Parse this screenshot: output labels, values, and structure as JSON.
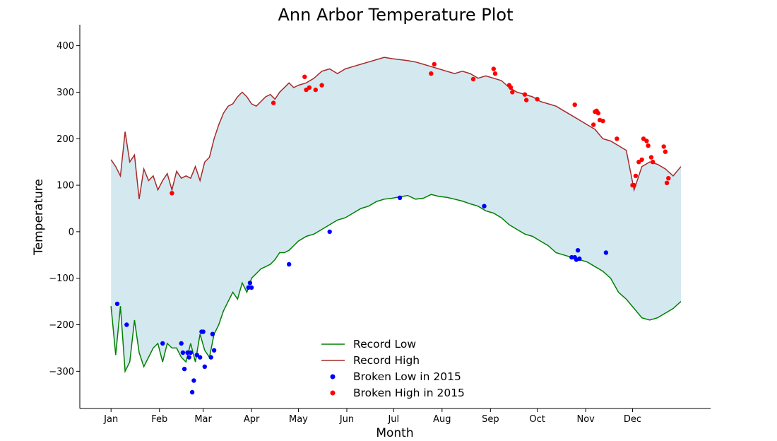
{
  "chart_data": {
    "type": "line",
    "title": "Ann Arbor Temperature Plot",
    "xlabel": "Month",
    "ylabel": "Temperature",
    "xlim": [
      -20,
      384
    ],
    "ylim": [
      -380,
      445
    ],
    "x_ticks": [
      {
        "day": 0,
        "label": "Jan"
      },
      {
        "day": 31,
        "label": "Feb"
      },
      {
        "day": 59,
        "label": "Mar"
      },
      {
        "day": 90,
        "label": "Apr"
      },
      {
        "day": 120,
        "label": "May"
      },
      {
        "day": 151,
        "label": "Jun"
      },
      {
        "day": 181,
        "label": "Jul"
      },
      {
        "day": 212,
        "label": "Aug"
      },
      {
        "day": 243,
        "label": "Sep"
      },
      {
        "day": 273,
        "label": "Oct"
      },
      {
        "day": 304,
        "label": "Nov"
      },
      {
        "day": 334,
        "label": "Dec"
      }
    ],
    "y_ticks": [
      -300,
      -200,
      -100,
      0,
      100,
      200,
      300,
      400
    ],
    "y_tick_labels": [
      "−300",
      "−200",
      "−100",
      "0",
      "100",
      "200",
      "300",
      "400"
    ],
    "grid": false,
    "legend_position": "bottom-center",
    "fill_between": {
      "color": "#d4e8f0"
    },
    "series": [
      {
        "name": "Record Low",
        "kind": "line",
        "color": "#008000",
        "x": [
          0,
          3,
          6,
          9,
          12,
          15,
          18,
          21,
          24,
          27,
          30,
          33,
          36,
          39,
          42,
          45,
          48,
          51,
          54,
          57,
          60,
          63,
          66,
          69,
          72,
          75,
          78,
          81,
          84,
          87,
          90,
          93,
          96,
          99,
          102,
          105,
          108,
          111,
          114,
          117,
          120,
          125,
          130,
          135,
          140,
          145,
          150,
          155,
          160,
          165,
          170,
          175,
          180,
          185,
          190,
          195,
          200,
          205,
          210,
          215,
          220,
          225,
          230,
          235,
          240,
          245,
          250,
          255,
          260,
          265,
          270,
          275,
          280,
          285,
          290,
          295,
          300,
          305,
          310,
          315,
          320,
          325,
          330,
          335,
          340,
          345,
          350,
          355,
          360,
          365
        ],
        "y": [
          -160,
          -265,
          -160,
          -300,
          -280,
          -190,
          -260,
          -290,
          -270,
          -250,
          -240,
          -280,
          -240,
          -250,
          -250,
          -270,
          -280,
          -240,
          -280,
          -220,
          -255,
          -270,
          -220,
          -200,
          -170,
          -150,
          -130,
          -145,
          -110,
          -130,
          -100,
          -90,
          -80,
          -75,
          -70,
          -60,
          -45,
          -45,
          -40,
          -30,
          -20,
          -10,
          -5,
          5,
          15,
          25,
          30,
          40,
          50,
          55,
          65,
          70,
          72,
          75,
          78,
          70,
          72,
          80,
          76,
          74,
          70,
          66,
          60,
          55,
          45,
          40,
          30,
          15,
          5,
          -5,
          -10,
          -20,
          -30,
          -45,
          -50,
          -55,
          -60,
          -65,
          -75,
          -85,
          -100,
          -130,
          -145,
          -165,
          -185,
          -190,
          -185,
          -175,
          -165,
          -150
        ]
      },
      {
        "name": "Record High",
        "kind": "line",
        "color": "#a52a2a",
        "x": [
          0,
          3,
          6,
          9,
          12,
          15,
          18,
          21,
          24,
          27,
          30,
          33,
          36,
          39,
          42,
          45,
          48,
          51,
          54,
          57,
          60,
          63,
          66,
          69,
          72,
          75,
          78,
          81,
          84,
          87,
          90,
          93,
          96,
          99,
          102,
          105,
          108,
          111,
          114,
          117,
          120,
          125,
          130,
          135,
          140,
          145,
          150,
          155,
          160,
          165,
          170,
          175,
          180,
          185,
          190,
          195,
          200,
          205,
          210,
          215,
          220,
          225,
          230,
          235,
          240,
          245,
          250,
          255,
          260,
          265,
          270,
          275,
          280,
          285,
          290,
          295,
          300,
          305,
          310,
          315,
          320,
          325,
          330,
          335,
          340,
          345,
          350,
          355,
          360,
          365
        ],
        "y": [
          155,
          140,
          120,
          215,
          150,
          165,
          70,
          135,
          110,
          120,
          90,
          110,
          125,
          90,
          130,
          115,
          120,
          115,
          140,
          110,
          150,
          160,
          200,
          230,
          255,
          270,
          275,
          290,
          300,
          290,
          275,
          270,
          280,
          290,
          295,
          285,
          300,
          310,
          320,
          310,
          315,
          320,
          330,
          345,
          350,
          340,
          350,
          355,
          360,
          365,
          370,
          375,
          372,
          370,
          368,
          365,
          360,
          355,
          350,
          345,
          340,
          345,
          340,
          330,
          335,
          330,
          325,
          310,
          300,
          295,
          290,
          280,
          275,
          270,
          260,
          250,
          240,
          230,
          220,
          200,
          195,
          185,
          175,
          90,
          140,
          150,
          145,
          135,
          120,
          140
        ]
      },
      {
        "name": "Broken Low in 2015",
        "kind": "scatter",
        "color": "#0000ff",
        "x": [
          4,
          10,
          33,
          45,
          46,
          47,
          49,
          50,
          51,
          52,
          53,
          55,
          57,
          58,
          59,
          60,
          64,
          65,
          66,
          88,
          89,
          90,
          114,
          140,
          185,
          239,
          295,
          297,
          298,
          299,
          300,
          317
        ],
        "y": [
          -155,
          -200,
          -240,
          -240,
          -260,
          -295,
          -260,
          -270,
          -260,
          -345,
          -320,
          -265,
          -270,
          -215,
          -215,
          -290,
          -270,
          -220,
          -255,
          -120,
          -110,
          -120,
          -70,
          0,
          73,
          55,
          -55,
          -55,
          -60,
          -40,
          -58,
          -45
        ]
      },
      {
        "name": "Broken High in 2015",
        "kind": "scatter",
        "color": "#ff0000",
        "x": [
          39,
          104,
          124,
          125,
          127,
          131,
          135,
          205,
          207,
          232,
          245,
          246,
          255,
          256,
          257,
          265,
          266,
          273,
          297,
          309,
          310,
          311,
          312,
          313,
          315,
          324,
          334,
          335,
          336,
          338,
          340,
          341,
          343,
          344,
          346,
          347,
          354,
          355,
          356,
          357
        ],
        "y": [
          83,
          277,
          333,
          305,
          310,
          305,
          315,
          340,
          360,
          328,
          350,
          340,
          315,
          310,
          300,
          295,
          283,
          285,
          273,
          230,
          258,
          260,
          255,
          240,
          238,
          200,
          100,
          100,
          120,
          150,
          155,
          200,
          195,
          185,
          160,
          150,
          183,
          172,
          105,
          115
        ]
      }
    ]
  }
}
